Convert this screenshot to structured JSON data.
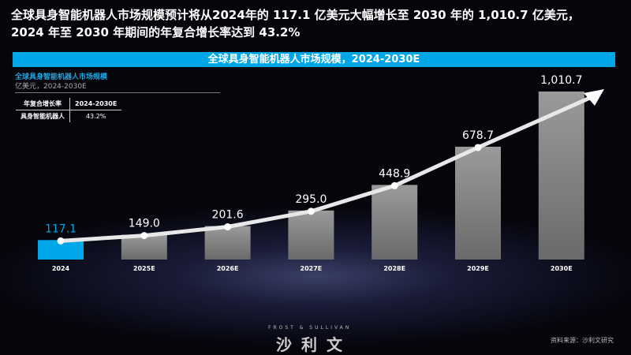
{
  "title_line1": "全球具身智能机器人市场规模预计将从2024年的 117.1 亿美元大幅增长至 2030 年的 1,010.7 亿美元，",
  "title_line2": "2024 年至 2030 年期间的年复合增长率达到 43.2%",
  "banner": "全球具身智能机器人市场规模，2024-2030E",
  "subtitle": "全球具身智能机器人市场规模",
  "unit": "亿美元，2024-2030E",
  "cagr_table": {
    "headers": [
      "年复合增长率",
      "2024-2030E"
    ],
    "row": [
      "具身智能机器人",
      "43.2%"
    ]
  },
  "logo_en": "FROST & SULLIVAN",
  "logo_cn": "沙利文",
  "source": "资料来源：沙利文研究",
  "colors": {
    "highlight": "#00a7e8",
    "bar": "#8a8a8a"
  },
  "chart_data": {
    "type": "bar",
    "categories": [
      "2024",
      "2025E",
      "2026E",
      "2027E",
      "2028E",
      "2029E",
      "2030E"
    ],
    "values": [
      117.1,
      149.0,
      201.6,
      295.0,
      448.9,
      678.7,
      1010.7
    ],
    "value_labels": [
      "117.1",
      "149.0",
      "201.6",
      "295.0",
      "448.9",
      "678.7",
      "1,010.7"
    ],
    "trend_arrow": true
  }
}
